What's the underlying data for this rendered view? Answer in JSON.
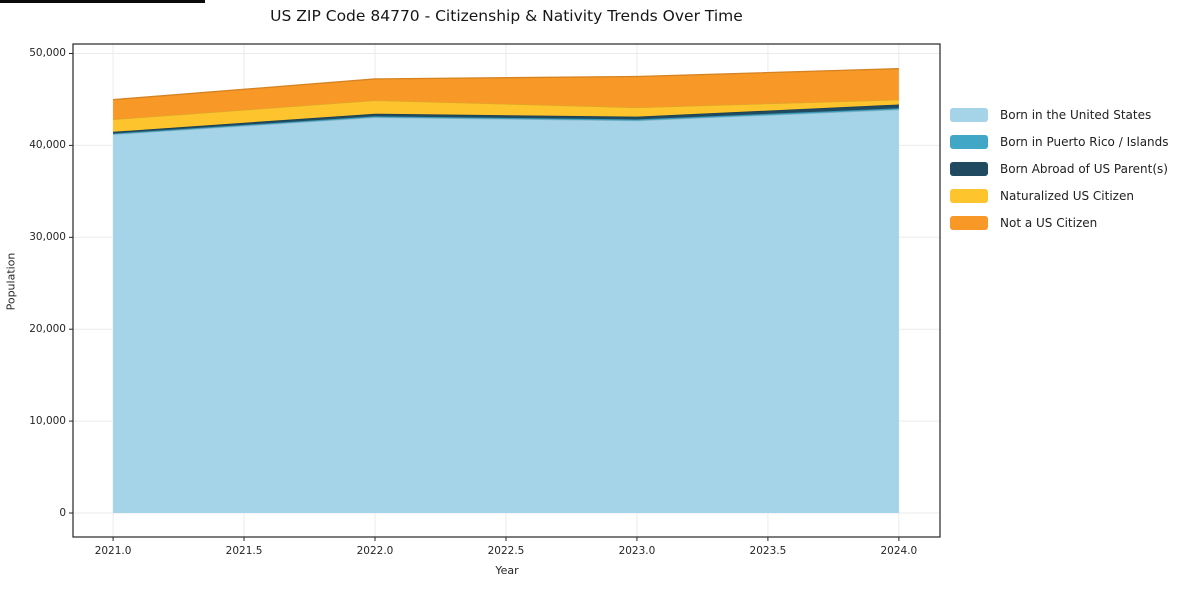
{
  "title": "US ZIP Code 84770 - Citizenship & Nativity Trends Over Time",
  "chart_data": {
    "type": "area",
    "stacked": true,
    "title": "US ZIP Code 84770 - Citizenship & Nativity Trends Over Time",
    "xlabel": "Year",
    "ylabel": "Population",
    "x": [
      2021,
      2022,
      2023,
      2024
    ],
    "series": [
      {
        "name": "Born in the United States",
        "color": "#a5d3e8",
        "values": [
          41200,
          43050,
          42700,
          43900
        ]
      },
      {
        "name": "Born in Puerto Rico / Islands",
        "color": "#41a7c6",
        "values": [
          100,
          120,
          130,
          150
        ]
      },
      {
        "name": "Born Abroad of US Parent(s)",
        "color": "#1f4a5f",
        "values": [
          180,
          280,
          300,
          400
        ]
      },
      {
        "name": "Naturalized US Citizen",
        "color": "#fdc42e",
        "values": [
          1350,
          1450,
          1000,
          520
        ]
      },
      {
        "name": "Not a US Citizen",
        "color": "#f89827",
        "values": [
          2150,
          2330,
          3370,
          3380
        ]
      }
    ],
    "stack_totals": [
      44980,
      47230,
      47500,
      48350
    ],
    "xlim": [
      2020.847,
      2024.157
    ],
    "ylim": [
      -2611,
      51034
    ],
    "xticks": {
      "values": [
        2021.0,
        2021.5,
        2022.0,
        2022.5,
        2023.0,
        2023.5,
        2024.0
      ],
      "labels": [
        "2021.0",
        "2021.5",
        "2022.0",
        "2022.5",
        "2023.0",
        "2023.5",
        "2024.0"
      ]
    },
    "yticks": {
      "values": [
        0,
        10000,
        20000,
        30000,
        40000,
        50000
      ],
      "labels": [
        "0",
        "10,000",
        "20,000",
        "30,000",
        "40,000",
        "50,000"
      ]
    },
    "grid": true,
    "grid_color": "#ebebeb",
    "spine_color": "#262626",
    "legend_position": "right of plot, top"
  }
}
